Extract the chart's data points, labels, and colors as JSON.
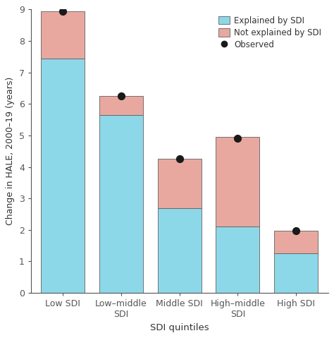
{
  "categories": [
    "Low SDI",
    "Low–middle\nSDI",
    "Middle SDI",
    "High–middle\nSDI",
    "High SDI"
  ],
  "explained_by_sdi": [
    7.45,
    5.65,
    2.7,
    2.1,
    1.25
  ],
  "not_explained_by_sdi": [
    1.5,
    0.6,
    1.55,
    2.85,
    0.72
  ],
  "observed": [
    8.95,
    6.25,
    4.25,
    4.9,
    1.97
  ],
  "bar_width": 0.75,
  "color_explained": "#8dd8e8",
  "color_not_explained": "#e8a8a0",
  "color_observed": "#1a1a1a",
  "ylabel": "Change in HALE, 2000–19 (years)",
  "xlabel": "SDI quintiles",
  "ylim": [
    0,
    9
  ],
  "yticks": [
    0,
    1,
    2,
    3,
    4,
    5,
    6,
    7,
    8,
    9
  ],
  "legend_explained": "Explained by SDI",
  "legend_not_explained": "Not explained by SDI",
  "legend_observed": "Observed",
  "figure_bg": "#ffffff",
  "axes_bg": "#ffffff"
}
